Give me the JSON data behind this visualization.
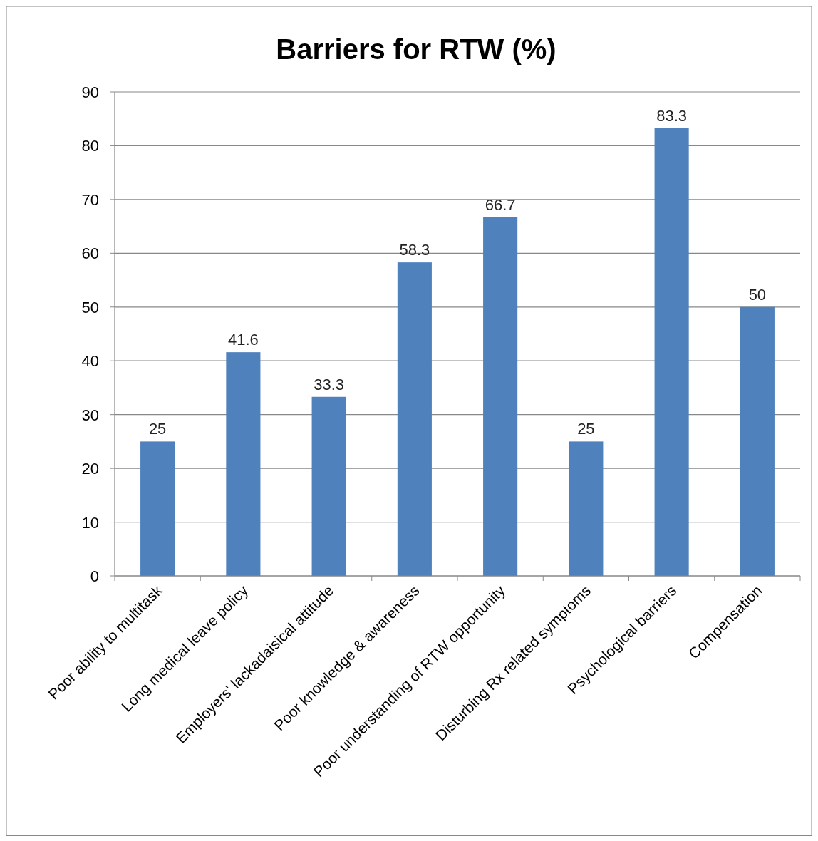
{
  "chart_data": {
    "type": "bar",
    "title": "Barriers for RTW (%)",
    "categories": [
      "Poor ability to multitask",
      "Long medical leave policy",
      "Employers' lackadaisical attitude",
      "Poor knowledge & awareness",
      "Poor understanding of RTW opportunity",
      "Disturbing Rx related symptoms",
      "Psychological barriers",
      "Compensation"
    ],
    "values": [
      25,
      41.6,
      33.3,
      58.3,
      66.7,
      25,
      83.3,
      50
    ],
    "color": "#4f81bd",
    "ylim": [
      0,
      90
    ],
    "yticks": [
      0,
      10,
      20,
      30,
      40,
      50,
      60,
      70,
      80,
      90
    ],
    "grid": "y",
    "data_labels": true
  }
}
